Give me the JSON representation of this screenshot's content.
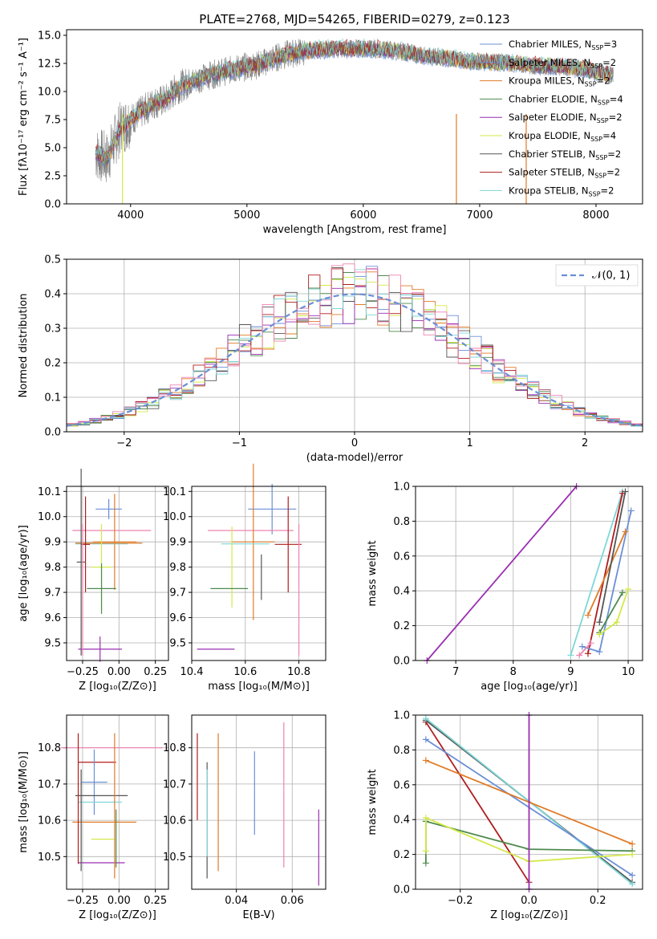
{
  "colors": {
    "c1": "#6a8fd6",
    "c2": "#e07b26",
    "c3": "#e07b26",
    "chabrier_miles": "#6a8fd6",
    "salpeter_miles": "#6a8fd6",
    "kroupa_miles": "#e07b26",
    "chabrier_elodie": "#4e8a4e",
    "salpeter_elodie": "#9a2fb0",
    "kroupa_elodie": "#d4e84a",
    "chabrier_stelib": "#555555",
    "salpeter_stelib": "#b01c1c",
    "kroupa_stelib": "#7fd6d6",
    "pink": "#ee82b0",
    "olive": "#5a7a3a"
  },
  "chart_data": [
    {
      "type": "line",
      "title": "PLATE=2768, MJD=54265, FIBERID=0279, z=0.123",
      "xlabel": "wavelength [Angstrom, rest frame]",
      "ylabel": "Flux [fλ10⁻¹⁷ erg cm⁻² s⁻¹ A⁻¹]",
      "xlim": [
        3450,
        8400
      ],
      "ylim": [
        0,
        15.5
      ],
      "xticks": [
        "4000",
        "5000",
        "6000",
        "7000",
        "8000"
      ],
      "yticks": [
        "0.0",
        "2.5",
        "5.0",
        "7.5",
        "10.0",
        "12.5",
        "15.0"
      ],
      "legend": [
        {
          "name": "Chabrier MILES, N",
          "sub": "SSP",
          "tail": "=3",
          "color": "#6a8fd6"
        },
        {
          "name": "Salpeter MILES, N",
          "sub": "SSP",
          "tail": "=2",
          "color": "#6a8fd6"
        },
        {
          "name": "Kroupa MILES, N",
          "sub": "SSP",
          "tail": "=2",
          "color": "#e07b26"
        },
        {
          "name": "Chabrier ELODIE, N",
          "sub": "SSP",
          "tail": "=4",
          "color": "#4e8a4e"
        },
        {
          "name": "Salpeter ELODIE, N",
          "sub": "SSP",
          "tail": "=2",
          "color": "#9a2fb0"
        },
        {
          "name": "Kroupa ELODIE, N",
          "sub": "SSP",
          "tail": "=4",
          "color": "#d4e84a"
        },
        {
          "name": "Chabrier STELIB, N",
          "sub": "SSP",
          "tail": "=2",
          "color": "#555555"
        },
        {
          "name": "Salpeter STELIB, N",
          "sub": "SSP",
          "tail": "=2",
          "color": "#b01c1c"
        },
        {
          "name": "Kroupa STELIB, N",
          "sub": "SSP",
          "tail": "=2",
          "color": "#7fd6d6"
        }
      ],
      "continuum_x": [
        3700,
        3800,
        3900,
        4000,
        4100,
        4200,
        4300,
        4400,
        4500,
        4700,
        4900,
        5100,
        5300,
        5500,
        5700,
        5900,
        6100,
        6300,
        6500,
        6700,
        6900,
        7100,
        7300,
        7500,
        7700,
        7900,
        8150
      ],
      "continuum_y": [
        4.5,
        4.0,
        6.5,
        7.5,
        8.2,
        9.0,
        9.2,
        10.3,
        10.8,
        11.5,
        12.0,
        12.4,
        13.2,
        13.6,
        13.8,
        13.8,
        13.8,
        13.6,
        13.2,
        13.0,
        12.7,
        12.6,
        12.5,
        12.3,
        12.2,
        12.0,
        11.4
      ],
      "dropouts_x": [
        3930,
        6800,
        7400
      ]
    },
    {
      "type": "histogram",
      "xlabel": "(data-model)/error",
      "ylabel": "Normed distribution",
      "xlim": [
        -2.5,
        2.5
      ],
      "ylim": [
        0,
        0.5
      ],
      "xticks": [
        "−2",
        "−1",
        "0",
        "1",
        "2"
      ],
      "yticks": [
        "0.0",
        "0.1",
        "0.2",
        "0.3",
        "0.4",
        "0.5"
      ],
      "legend": [
        {
          "name": "𝒩(0, 1)",
          "color": "#6a8fd6"
        }
      ],
      "bin_width": 0.1
    },
    {
      "type": "scatter",
      "xlabel": "Z [log₁₀(Z/Z⊙)]",
      "ylabel": "age  [log₁₀(age/yr)]",
      "xlim": [
        -0.36,
        0.34
      ],
      "ylim": [
        9.43,
        10.12
      ],
      "xticks": [
        "−0.25",
        "0.00",
        "0.25"
      ],
      "yticks": [
        "9.5",
        "9.6",
        "9.7",
        "9.8",
        "9.9",
        "10.0",
        "10.1"
      ],
      "points": [
        {
          "x": -0.07,
          "xerr": 0.09,
          "y": 10.03,
          "yerr": 0.04,
          "color": "#6a8fd6"
        },
        {
          "x": -0.05,
          "xerr": 0.27,
          "y": 9.945,
          "yerr": 0.0,
          "color": "#ee82b0"
        },
        {
          "x": -0.03,
          "xerr": 0.15,
          "y": 9.9,
          "yerr": 0.19,
          "color": "#e07b26"
        },
        {
          "x": -0.12,
          "xerr": 0.18,
          "y": 9.892,
          "yerr": 0.0,
          "color": "#7fd6d6"
        },
        {
          "x": -0.07,
          "xerr": 0.23,
          "y": 9.895,
          "yerr": 0.0,
          "color": "#e07b26"
        },
        {
          "x": -0.23,
          "xerr": 0.03,
          "y": 9.89,
          "yerr": 0.19,
          "color": "#b01c1c"
        },
        {
          "x": -0.12,
          "xerr": 0.07,
          "y": 9.8,
          "yerr": 0.17,
          "color": "#d4e84a"
        },
        {
          "x": -0.12,
          "xerr": 0.1,
          "y": 9.715,
          "yerr": 0.1,
          "color": "#4e8a4e"
        },
        {
          "x": -0.26,
          "xerr": 0.03,
          "y": 9.82,
          "yerr": 0.37,
          "color": "#555555"
        },
        {
          "x": -0.13,
          "xerr": 0.15,
          "y": 9.475,
          "yerr": 0.05,
          "color": "#9a2fb0"
        },
        {
          "x": -0.25,
          "xerr": 0.0,
          "y": 9.71,
          "yerr": 0.26,
          "color": "#ee82b0"
        }
      ]
    },
    {
      "type": "scatter",
      "xlabel": "mass [log₁₀(M/M⊙)]",
      "ylabel": "",
      "xlim": [
        10.4,
        10.9
      ],
      "ylim": [
        9.43,
        10.12
      ],
      "xticks": [
        "10.4",
        "10.6",
        "10.8"
      ],
      "yticks": [
        "9.5",
        "9.6",
        "9.7",
        "9.8",
        "9.9",
        "10.0",
        "10.1"
      ],
      "points": [
        {
          "x": 10.7,
          "xerr": 0.09,
          "y": 10.03,
          "yerr": 0.1,
          "color": "#6a8fd6"
        },
        {
          "x": 10.62,
          "xerr": 0.16,
          "y": 9.945,
          "yerr": 0.0,
          "color": "#ee82b0"
        },
        {
          "x": 10.63,
          "xerr": 0.08,
          "y": 9.9,
          "yerr": 0.31,
          "color": "#e07b26"
        },
        {
          "x": 10.6,
          "xerr": 0.09,
          "y": 9.892,
          "yerr": 0.0,
          "color": "#7fd6d6"
        },
        {
          "x": 10.76,
          "xerr": 0.05,
          "y": 9.89,
          "yerr": 0.19,
          "color": "#b01c1c"
        },
        {
          "x": 10.55,
          "xerr": 0.0,
          "y": 9.8,
          "yerr": 0.16,
          "color": "#d4e84a"
        },
        {
          "x": 10.54,
          "xerr": 0.07,
          "y": 9.715,
          "yerr": 0.0,
          "color": "#4e8a4e"
        },
        {
          "x": 10.49,
          "xerr": 0.07,
          "y": 9.475,
          "yerr": 0.0,
          "color": "#9a2fb0"
        },
        {
          "x": 10.8,
          "xerr": 0.0,
          "y": 9.71,
          "yerr": 0.26,
          "color": "#ee82b0"
        },
        {
          "x": 10.66,
          "xerr": 0.0,
          "y": 9.76,
          "yerr": 0.09,
          "color": "#555555"
        }
      ]
    },
    {
      "type": "line",
      "xlabel": "age  [log₁₀(age/yr)]",
      "ylabel": "mass weight",
      "xlim": [
        6.3,
        10.25
      ],
      "ylim": [
        0,
        1.0
      ],
      "xticks": [
        "7",
        "8",
        "9",
        "10"
      ],
      "yticks": [
        "0.0",
        "0.2",
        "0.4",
        "0.6",
        "0.8",
        "1.0"
      ],
      "series": [
        {
          "color": "#9a2fb0",
          "x": [
            6.5,
            9.1
          ],
          "y": [
            0.0,
            1.0
          ]
        },
        {
          "color": "#7fd6d6",
          "x": [
            9.0,
            9.9
          ],
          "y": [
            0.03,
            0.97
          ]
        },
        {
          "color": "#b01c1c",
          "x": [
            9.3,
            9.9
          ],
          "y": [
            0.04,
            0.96
          ]
        },
        {
          "color": "#6a8fd6",
          "x": [
            9.2,
            9.5,
            10.05
          ],
          "y": [
            0.08,
            0.05,
            0.86
          ]
        },
        {
          "color": "#e07b26",
          "x": [
            9.3,
            9.95
          ],
          "y": [
            0.26,
            0.74
          ]
        },
        {
          "color": "#4e8a4e",
          "x": [
            9.5,
            9.9
          ],
          "y": [
            0.16,
            0.39
          ]
        },
        {
          "color": "#d4e84a",
          "x": [
            9.5,
            9.8,
            10.0
          ],
          "y": [
            0.15,
            0.22,
            0.41
          ]
        },
        {
          "color": "#555555",
          "x": [
            9.5,
            9.95
          ],
          "y": [
            0.22,
            0.97
          ]
        },
        {
          "color": "#ee82b0",
          "x": [
            9.15,
            9.35
          ],
          "y": [
            0.03,
            0.1
          ]
        }
      ]
    },
    {
      "type": "scatter",
      "xlabel": "Z [log₁₀(Z/Z⊙)]",
      "ylabel": "mass [log₁₀(M/M⊙)]",
      "xlim": [
        -0.36,
        0.34
      ],
      "ylim": [
        10.41,
        10.89
      ],
      "xticks": [
        "−0.25",
        "0.00",
        "0.25"
      ],
      "yticks": [
        "10.5",
        "10.6",
        "10.7",
        "10.8"
      ],
      "points": [
        {
          "x": -0.05,
          "xerr": 0.35,
          "y": 10.8,
          "yerr": 0.0,
          "color": "#ee82b0"
        },
        {
          "x": -0.15,
          "xerr": 0.13,
          "y": 10.76,
          "yerr": 0.0,
          "color": "#b01c1c"
        },
        {
          "x": -0.17,
          "xerr": 0.09,
          "y": 10.705,
          "yerr": 0.09,
          "color": "#6a8fd6"
        },
        {
          "x": -0.12,
          "xerr": 0.18,
          "y": 10.668,
          "yerr": 0.0,
          "color": "#555555"
        },
        {
          "x": -0.13,
          "xerr": 0.15,
          "y": 10.65,
          "yerr": 0.0,
          "color": "#7fd6d6"
        },
        {
          "x": -0.1,
          "xerr": 0.22,
          "y": 10.595,
          "yerr": 0.0,
          "color": "#e07b26"
        },
        {
          "x": -0.11,
          "xerr": 0.08,
          "y": 10.548,
          "yerr": 0.0,
          "color": "#d4e84a"
        },
        {
          "x": -0.12,
          "xerr": 0.16,
          "y": 10.483,
          "yerr": 0.0,
          "color": "#9a2fb0"
        },
        {
          "x": -0.28,
          "xerr": 0.0,
          "y": 10.66,
          "yerr": 0.18,
          "color": "#b01c1c"
        },
        {
          "x": -0.26,
          "xerr": 0.0,
          "y": 10.6,
          "yerr": 0.14,
          "color": "#555555"
        },
        {
          "x": -0.03,
          "xerr": 0.0,
          "y": 10.64,
          "yerr": 0.2,
          "color": "#e07b26"
        },
        {
          "x": -0.02,
          "xerr": 0.0,
          "y": 10.55,
          "yerr": 0.08,
          "color": "#4e8a4e"
        }
      ]
    },
    {
      "type": "scatter",
      "xlabel": "E(B-V)",
      "ylabel": "",
      "xlim": [
        0.024,
        0.072
      ],
      "ylim": [
        10.41,
        10.89
      ],
      "xticks": [
        "0.04",
        "0.06"
      ],
      "yticks": [
        "10.5",
        "10.6",
        "10.7",
        "10.8"
      ],
      "segments": [
        {
          "x": 0.026,
          "y0": 10.6,
          "y1": 10.84,
          "color": "#b01c1c"
        },
        {
          "x": 0.0295,
          "y0": 10.44,
          "y1": 10.76,
          "color": "#555555"
        },
        {
          "x": 0.0295,
          "y0": 10.5,
          "y1": 10.74,
          "color": "#7fd6d6"
        },
        {
          "x": 0.0335,
          "y0": 10.46,
          "y1": 10.84,
          "color": "#e07b26"
        },
        {
          "x": 0.0465,
          "y0": 10.56,
          "y1": 10.79,
          "color": "#6a8fd6"
        },
        {
          "x": 0.057,
          "y0": 10.47,
          "y1": 10.87,
          "color": "#ee82b0"
        },
        {
          "x": 0.0695,
          "y0": 10.42,
          "y1": 10.63,
          "color": "#9a2fb0"
        }
      ]
    },
    {
      "type": "line",
      "xlabel": "Z [log₁₀(Z/Z⊙)]",
      "ylabel": "mass weight",
      "xlim": [
        -0.33,
        0.33
      ],
      "ylim": [
        0,
        1.0
      ],
      "xticks": [
        "−0.2",
        "0.0",
        "0.2"
      ],
      "yticks": [
        "0.0",
        "0.2",
        "0.4",
        "0.6",
        "0.8",
        "1.0"
      ],
      "series": [
        {
          "color": "#b01c1c",
          "x": [
            -0.3,
            0.0
          ],
          "y": [
            0.96,
            0.04
          ]
        },
        {
          "color": "#555555",
          "x": [
            -0.3,
            0.3
          ],
          "y": [
            0.97,
            0.04
          ]
        },
        {
          "color": "#7fd6d6",
          "x": [
            -0.3,
            0.3
          ],
          "y": [
            0.98,
            0.03
          ]
        },
        {
          "color": "#6a8fd6",
          "x": [
            -0.3,
            0.3
          ],
          "y": [
            0.86,
            0.08
          ]
        },
        {
          "color": "#e07b26",
          "x": [
            -0.3,
            0.3
          ],
          "y": [
            0.74,
            0.26
          ]
        },
        {
          "color": "#4e8a4e",
          "x": [
            -0.3,
            -0.3,
            0.0,
            0.3
          ],
          "y": [
            0.15,
            0.39,
            0.23,
            0.22
          ]
        },
        {
          "color": "#d4e84a",
          "x": [
            -0.3,
            -0.3,
            0.0,
            0.3
          ],
          "y": [
            0.22,
            0.41,
            0.16,
            0.2
          ]
        },
        {
          "color": "#9a2fb0",
          "x": [
            0.0,
            0.0
          ],
          "y": [
            0.0,
            1.0
          ]
        }
      ]
    }
  ]
}
